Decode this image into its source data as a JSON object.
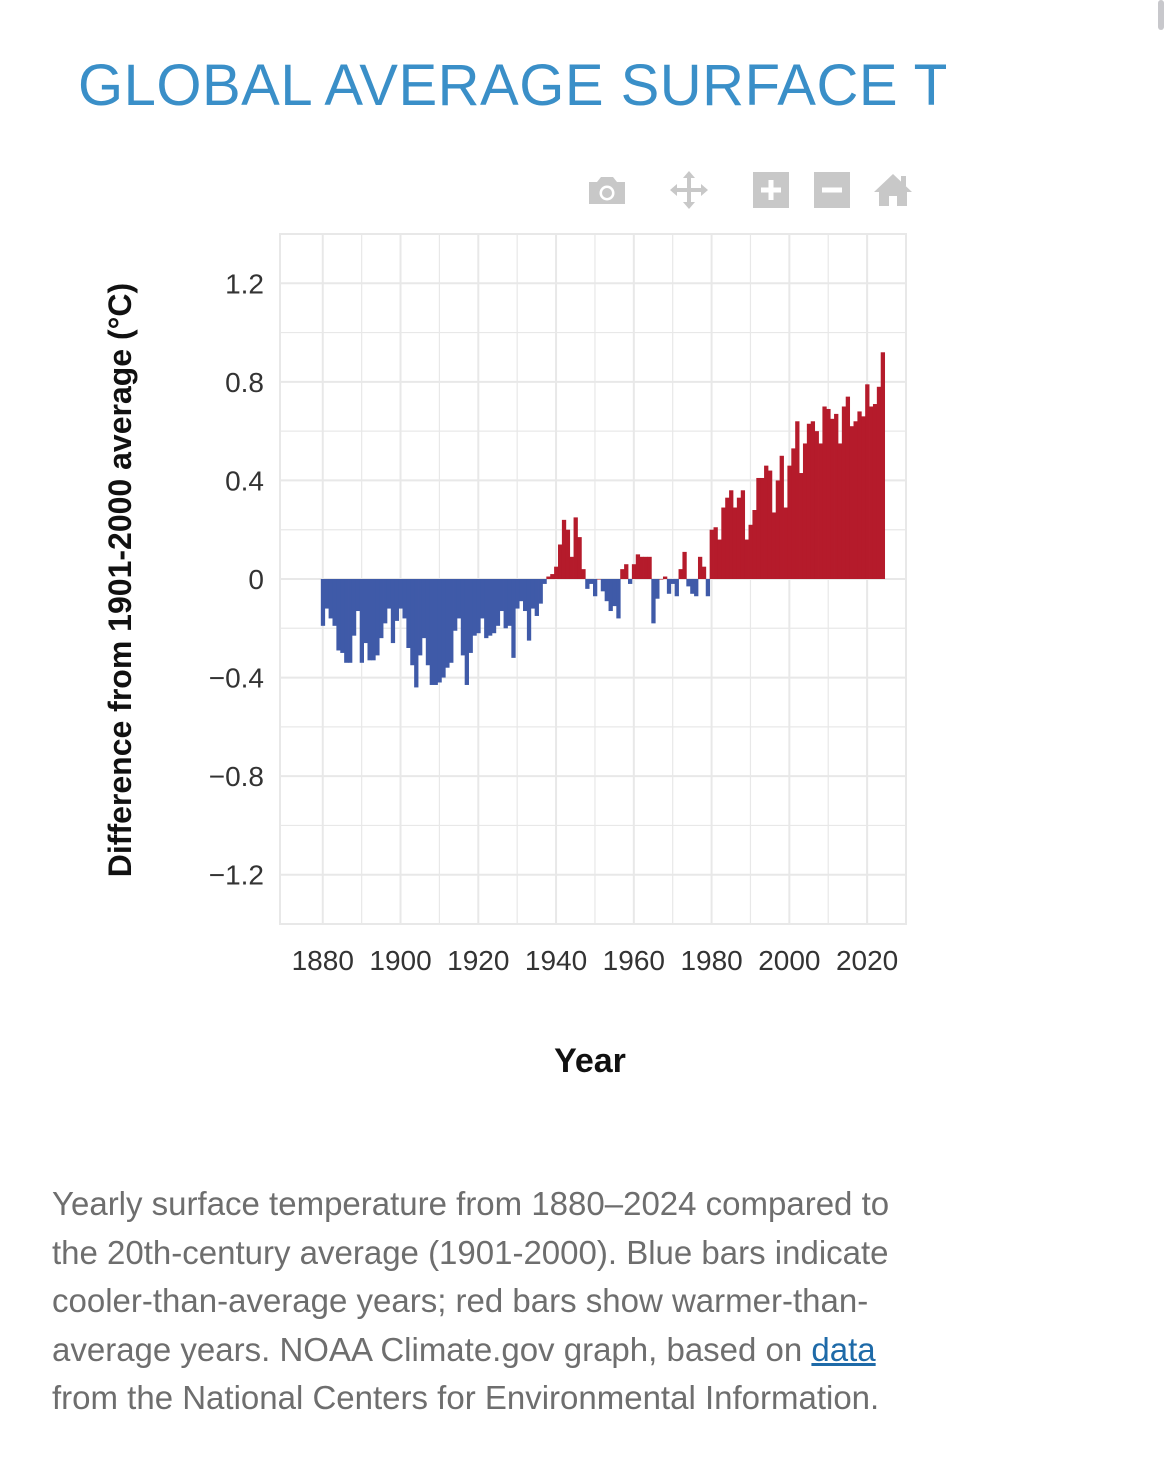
{
  "page": {
    "title": "GLOBAL AVERAGE SURFACE TEMPERATURE"
  },
  "toolbar": {
    "icons": [
      "camera-icon",
      "pan-icon",
      "zoom-in-icon",
      "zoom-out-icon",
      "home-icon"
    ],
    "color": "#c8c8c8"
  },
  "caption": {
    "text_before": "Yearly surface temperature from 1880–2024 compared to the 20th-century average (1901-2000). Blue bars indicate cooler-than-average years; red bars show warmer-than-average years. NOAA Climate.gov graph, based on ",
    "link_text": "data",
    "text_after": " from the National Centers for Environmental Information."
  },
  "colors": {
    "cool": "#3f5aa8",
    "warm": "#b51b2b",
    "grid": "#e8e8e8",
    "title": "#3a8fc8"
  },
  "chart_data": {
    "type": "bar",
    "title": "GLOBAL AVERAGE SURFACE TEMPERATURE",
    "xlabel": "Year",
    "ylabel": "Difference from 1901-2000 average  (°C)",
    "xlim": [
      1869,
      2030
    ],
    "ylim": [
      -1.4,
      1.4
    ],
    "x_ticks": [
      1880,
      1900,
      1920,
      1940,
      1960,
      1980,
      2000,
      2020
    ],
    "y_ticks": [
      {
        "value": 1.2,
        "label": "1.2"
      },
      {
        "value": 0.8,
        "label": "0.8"
      },
      {
        "value": 0.4,
        "label": "0.4"
      },
      {
        "value": 0,
        "label": "0"
      },
      {
        "value": -0.4,
        "label": "−0.4"
      },
      {
        "value": -0.8,
        "label": "−0.8"
      },
      {
        "value": -1.2,
        "label": "−1.2"
      }
    ],
    "start_year": 1880,
    "end_year": 2024,
    "values": [
      -0.19,
      -0.12,
      -0.16,
      -0.19,
      -0.29,
      -0.3,
      -0.34,
      -0.34,
      -0.23,
      -0.13,
      -0.34,
      -0.26,
      -0.33,
      -0.33,
      -0.31,
      -0.24,
      -0.18,
      -0.12,
      -0.26,
      -0.17,
      -0.12,
      -0.16,
      -0.28,
      -0.35,
      -0.44,
      -0.31,
      -0.24,
      -0.35,
      -0.43,
      -0.43,
      -0.42,
      -0.4,
      -0.36,
      -0.34,
      -0.21,
      -0.16,
      -0.31,
      -0.43,
      -0.3,
      -0.23,
      -0.22,
      -0.16,
      -0.24,
      -0.23,
      -0.22,
      -0.19,
      -0.13,
      -0.2,
      -0.19,
      -0.32,
      -0.12,
      -0.09,
      -0.13,
      -0.25,
      -0.12,
      -0.15,
      -0.1,
      -0.02,
      0.01,
      0.02,
      0.05,
      0.14,
      0.24,
      0.2,
      0.09,
      0.25,
      0.17,
      0.04,
      -0.04,
      -0.02,
      -0.07,
      0.0,
      -0.05,
      -0.09,
      -0.13,
      -0.11,
      -0.16,
      0.04,
      0.06,
      -0.02,
      0.06,
      0.1,
      0.09,
      0.09,
      0.09,
      -0.18,
      -0.08,
      0.0,
      0.01,
      -0.06,
      -0.02,
      -0.07,
      0.04,
      0.11,
      -0.03,
      -0.06,
      -0.07,
      0.09,
      0.05,
      -0.07,
      0.2,
      0.21,
      0.16,
      0.29,
      0.33,
      0.36,
      0.29,
      0.33,
      0.36,
      0.16,
      0.22,
      0.28,
      0.41,
      0.41,
      0.46,
      0.44,
      0.27,
      0.4,
      0.5,
      0.29,
      0.46,
      0.53,
      0.64,
      0.43,
      0.55,
      0.63,
      0.64,
      0.6,
      0.55,
      0.7,
      0.69,
      0.65,
      0.67,
      0.55,
      0.7,
      0.74,
      0.62,
      0.64,
      0.68,
      0.66,
      0.79,
      0.7,
      0.71,
      0.78,
      0.92
    ]
  }
}
